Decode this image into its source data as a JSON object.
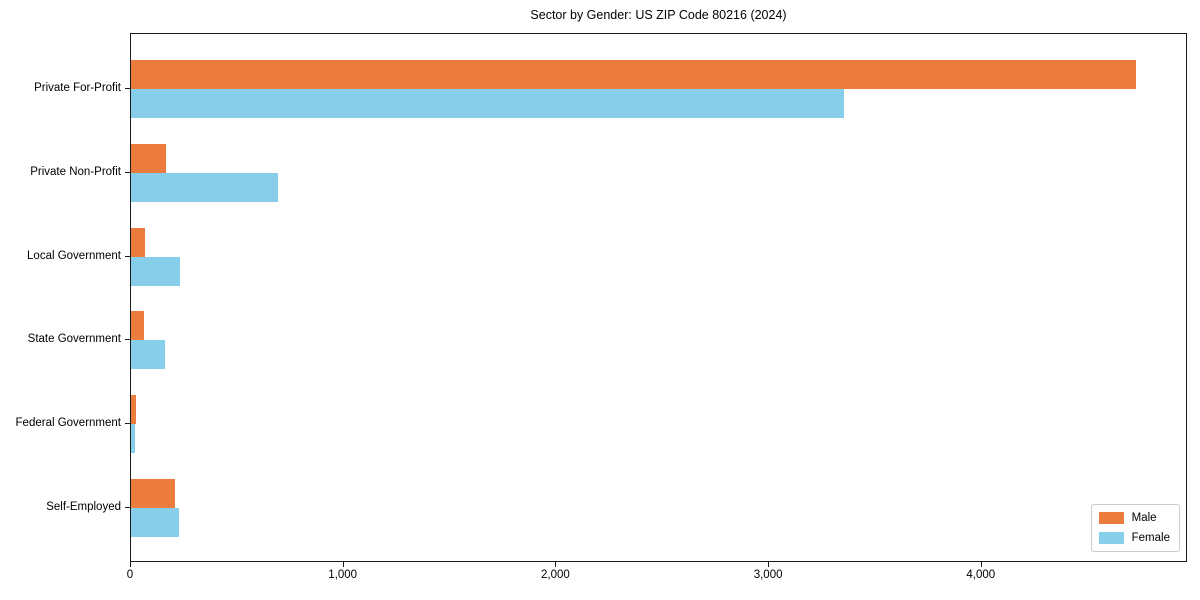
{
  "title": "Sector by Gender: US ZIP Code 80216 (2024)",
  "chart_data": {
    "type": "bar",
    "orientation": "horizontal",
    "title": "Sector by Gender: US ZIP Code 80216 (2024)",
    "categories": [
      "Private For-Profit",
      "Private Non-Profit",
      "Local Government",
      "State Government",
      "Federal Government",
      "Self-Employed"
    ],
    "series": [
      {
        "name": "Male",
        "color": "#ec7b3e",
        "values": [
          4725,
          165,
          65,
          60,
          25,
          205
        ]
      },
      {
        "name": "Female",
        "color": "#87ceeb",
        "values": [
          3350,
          690,
          230,
          160,
          20,
          225
        ]
      }
    ],
    "xlabel": "",
    "ylabel": "",
    "xlim": [
      0,
      4960
    ],
    "xticks": [
      0,
      1000,
      2000,
      3000,
      4000
    ],
    "xtick_labels": [
      "0",
      "1,000",
      "2,000",
      "3,000",
      "4,000"
    ],
    "legend_position": "lower right",
    "grid": false
  }
}
